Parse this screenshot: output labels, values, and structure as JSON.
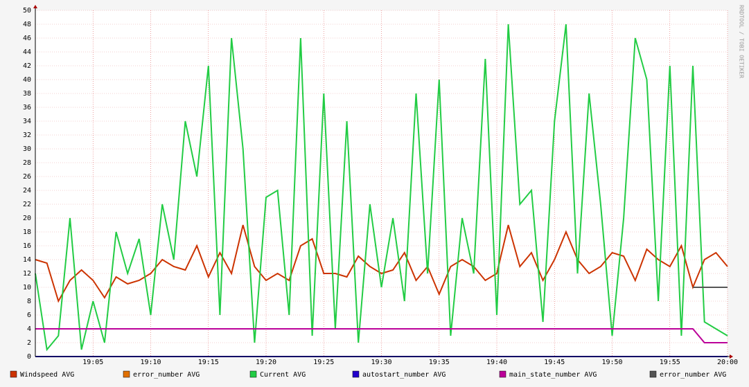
{
  "chart_data": {
    "type": "line",
    "watermark": "RRDTOOL / TOBI OETIKER",
    "categories": [
      null,
      null,
      null,
      null,
      null,
      "19:05",
      null,
      null,
      null,
      null,
      "19:10",
      null,
      null,
      null,
      null,
      "19:15",
      null,
      null,
      null,
      null,
      "19:20",
      null,
      null,
      null,
      null,
      "19:25",
      null,
      null,
      null,
      null,
      "19:30",
      null,
      null,
      null,
      null,
      "19:35",
      null,
      null,
      null,
      null,
      "19:40",
      null,
      null,
      null,
      null,
      "19:45",
      null,
      null,
      null,
      null,
      "19:50",
      null,
      null,
      null,
      null,
      "19:55",
      null,
      null,
      null,
      null,
      "20:00"
    ],
    "ylim": [
      0,
      50
    ],
    "yticks": [
      0,
      2,
      4,
      6,
      8,
      10,
      12,
      14,
      16,
      18,
      20,
      22,
      24,
      26,
      28,
      30,
      32,
      34,
      36,
      38,
      40,
      42,
      44,
      46,
      48,
      50
    ],
    "grid": true,
    "legend": "bottom",
    "series": [
      {
        "name": "Windspeed AVG",
        "color": "#cc3300",
        "values": [
          14,
          13.5,
          8,
          11,
          12.5,
          11,
          8.5,
          11.5,
          10.5,
          11,
          12,
          14,
          13,
          12.5,
          16,
          11.5,
          15,
          12,
          19,
          13,
          11,
          12,
          11,
          16,
          17,
          12,
          12,
          11.5,
          14.5,
          13,
          12,
          12.5,
          15,
          11,
          13,
          9,
          13,
          14,
          13,
          11,
          12,
          19,
          13,
          15,
          11,
          14,
          18,
          14,
          12,
          13,
          15,
          14.5,
          11,
          15.5,
          14,
          13,
          16,
          10,
          14,
          15,
          13
        ]
      },
      {
        "name": "error_number AVG",
        "color": "#e07000",
        "values": [
          0,
          0,
          0,
          0,
          0,
          0,
          0,
          0,
          0,
          0,
          0,
          0,
          0,
          0,
          0,
          0,
          0,
          0,
          0,
          0,
          0,
          0,
          0,
          0,
          0,
          0,
          0,
          0,
          0,
          0,
          0,
          0,
          0,
          0,
          0,
          0,
          0,
          0,
          0,
          0,
          0,
          0,
          0,
          0,
          0,
          0,
          0,
          0,
          0,
          0,
          0,
          0,
          0,
          0,
          0,
          0,
          0,
          0,
          0,
          0,
          0
        ]
      },
      {
        "name": "Current AVG",
        "color": "#22cc44",
        "values": [
          12,
          1,
          3,
          20,
          1,
          8,
          2,
          18,
          12,
          17,
          6,
          22,
          14,
          34,
          26,
          42,
          6,
          46,
          30,
          2,
          23,
          24,
          6,
          46,
          3,
          38,
          4,
          34,
          2,
          22,
          10,
          20,
          8,
          38,
          12,
          40,
          3,
          20,
          12,
          43,
          6,
          48,
          22,
          24,
          5,
          34,
          48,
          12,
          38,
          22,
          3,
          20,
          46,
          40,
          8,
          42,
          3,
          42,
          5,
          4,
          3
        ]
      },
      {
        "name": "autostart_number AVG",
        "color": "#2200cc",
        "values": [
          0,
          0,
          0,
          0,
          0,
          0,
          0,
          0,
          0,
          0,
          0,
          0,
          0,
          0,
          0,
          0,
          0,
          0,
          0,
          0,
          0,
          0,
          0,
          0,
          0,
          0,
          0,
          0,
          0,
          0,
          0,
          0,
          0,
          0,
          0,
          0,
          0,
          0,
          0,
          0,
          0,
          0,
          0,
          0,
          0,
          0,
          0,
          0,
          0,
          0,
          0,
          0,
          0,
          0,
          0,
          0,
          0,
          0,
          0,
          0,
          0
        ]
      },
      {
        "name": "main_state_number AVG",
        "color": "#bb0099",
        "values": [
          4,
          4,
          4,
          4,
          4,
          4,
          4,
          4,
          4,
          4,
          4,
          4,
          4,
          4,
          4,
          4,
          4,
          4,
          4,
          4,
          4,
          4,
          4,
          4,
          4,
          4,
          4,
          4,
          4,
          4,
          4,
          4,
          4,
          4,
          4,
          4,
          4,
          4,
          4,
          4,
          4,
          4,
          4,
          4,
          4,
          4,
          4,
          4,
          4,
          4,
          4,
          4,
          4,
          4,
          4,
          4,
          4,
          4,
          2,
          2,
          2
        ]
      },
      {
        "name": "error_number AVG",
        "color": "#555555",
        "values": [
          null,
          null,
          null,
          null,
          null,
          null,
          null,
          null,
          null,
          null,
          null,
          null,
          null,
          null,
          null,
          null,
          null,
          null,
          null,
          null,
          null,
          null,
          null,
          null,
          null,
          null,
          null,
          null,
          null,
          null,
          null,
          null,
          null,
          null,
          null,
          null,
          null,
          null,
          null,
          null,
          null,
          null,
          null,
          null,
          null,
          null,
          null,
          null,
          null,
          null,
          null,
          null,
          null,
          null,
          null,
          null,
          null,
          10,
          10,
          10,
          10
        ]
      }
    ]
  }
}
